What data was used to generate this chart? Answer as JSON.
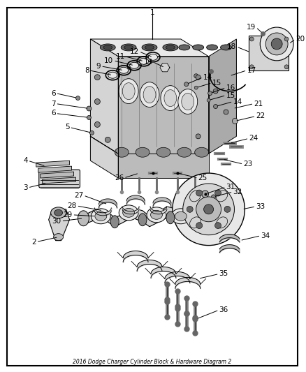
{
  "title": "2016 Dodge Charger Cylinder Block & Hardware Diagram 2",
  "fig_width": 4.38,
  "fig_height": 5.33,
  "dpi": 100,
  "bg_color": "#ffffff",
  "border_color": "#000000",
  "text_color": "#000000",
  "gray1": "#cccccc",
  "gray2": "#aaaaaa",
  "gray3": "#888888",
  "gray4": "#666666",
  "gray5": "#444444",
  "gray6": "#e8e8e8",
  "gray7": "#d4d4d4",
  "gray8": "#bbbbbb"
}
